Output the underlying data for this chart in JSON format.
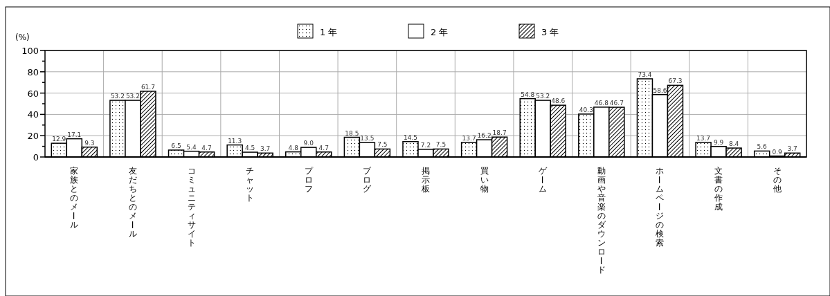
{
  "chart_data": {
    "type": "bar",
    "ylabel": "(%)",
    "categories": [
      "家族とのメール",
      "友だちとのメール",
      "コミュニティサイト",
      "チャット",
      "プロフ",
      "ブログ",
      "掲示板",
      "買い物",
      "ゲーム",
      "動画や音楽のダウンロード",
      "ホームページの検索",
      "文書の作成",
      "その他"
    ],
    "series": [
      {
        "name": "1 年",
        "color": "#000000",
        "values": [
          12.9,
          53.2,
          6.5,
          11.3,
          4.8,
          18.5,
          14.5,
          13.7,
          54.8,
          40.3,
          73.4,
          13.7,
          5.6
        ],
        "value_labels": [
          "12.9",
          "53.2",
          "6.5",
          "11.3",
          "4.8",
          "18.5",
          "14.5",
          "13.7",
          "54.8",
          "40.3",
          "73.4",
          "13.7",
          "5.6"
        ]
      },
      {
        "name": "2 年",
        "color": "#000000",
        "values": [
          17.1,
          53.2,
          5.4,
          4.5,
          9.0,
          13.5,
          7.2,
          16.2,
          53.2,
          46.8,
          58.6,
          9.9,
          0.9
        ],
        "value_labels": [
          "17.1",
          "53.2",
          "5.4",
          "4.5",
          "9.0",
          "13.5",
          "7.2",
          "16.2",
          "53.2",
          "46.8",
          "58.6",
          "9.9",
          "0.9"
        ]
      },
      {
        "name": "3 年",
        "color": "#000000",
        "values": [
          9.3,
          61.7,
          4.7,
          3.7,
          4.7,
          7.5,
          7.5,
          18.7,
          48.6,
          46.7,
          67.3,
          8.4,
          3.7
        ],
        "value_labels": [
          "9.3",
          "61.7",
          "4.7",
          "3.7",
          "4.7",
          "7.5",
          "7.5",
          "18.7",
          "48.6",
          "46.7",
          "67.3",
          "8.4",
          "3.7"
        ]
      }
    ],
    "ylim": [
      0,
      100
    ],
    "yticks": [
      0,
      {
        "value": 10,
        "label": null
      },
      20,
      {
        "value": 30,
        "label": null
      },
      40,
      {
        "value": 50,
        "label": null
      },
      60,
      {
        "value": 70,
        "label": null
      },
      80,
      {
        "value": 90,
        "label": null
      },
      100
    ],
    "grid": true,
    "legend": "top"
  }
}
